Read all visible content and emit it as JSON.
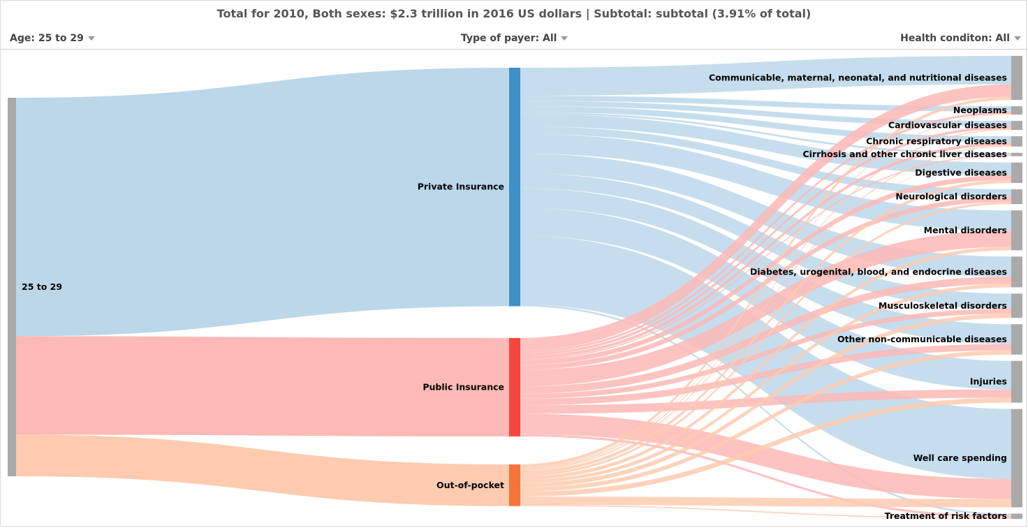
{
  "title": "Total for 2010, Both sexes: $2.3 trillion in 2016 US dollars | Subtotal: subtotal (3.91% of total)",
  "filters": {
    "age": "Age: 25 to 29",
    "payer": "Type of payer: All",
    "condition": "Health conditon: All"
  },
  "chart_data": {
    "type": "sankey",
    "source_nodes": [
      "25 to 29"
    ],
    "payer_nodes": [
      "Private Insurance",
      "Public Insurance",
      "Out-of-pocket"
    ],
    "condition_nodes": [
      "Communicable, maternal, neonatal, and nutritional diseases",
      "Neoplasms",
      "Cardiovascular diseases",
      "Chronic respiratory diseases",
      "Cirrhosis and other chronic liver diseases",
      "Digestive diseases",
      "Neurological disorders",
      "Mental disorders",
      "Diabetes, urogenital, blood, and endocrine diseases",
      "Musculoskeletal disorders",
      "Other non-communicable diseases",
      "Injuries",
      "Well care spending",
      "Treatment of risk factors"
    ],
    "payer_share": [
      0.63,
      0.26,
      0.11
    ],
    "flows": {
      "Private Insurance": [
        7.5,
        1.4,
        1.4,
        1.6,
        0.5,
        3.3,
        2.0,
        5.3,
        5.3,
        4.0,
        5.2,
        7.5,
        18.4,
        0.5
      ],
      "Public Insurance": [
        3.3,
        0.6,
        0.7,
        0.8,
        0.3,
        1.3,
        1.3,
        4.3,
        1.9,
        1.3,
        1.7,
        2.2,
        5.3,
        0.6
      ],
      "Out-of-pocket": [
        0.8,
        0.2,
        0.3,
        0.3,
        0.1,
        0.8,
        0.6,
        0.9,
        0.9,
        1.1,
        1.1,
        1.3,
        2.2,
        0.3
      ]
    },
    "colors": {
      "source_node": "#aaaaaa",
      "condition_node": "#aaaaaa",
      "Private Insurance": "#3d8fc6",
      "Public Insurance": "#f5473f",
      "Out-of-pocket": "#f7733a",
      "link_private": "#bcd7ea",
      "link_public": "#fdb9b6",
      "link_oop": "#fdcbb0"
    }
  }
}
